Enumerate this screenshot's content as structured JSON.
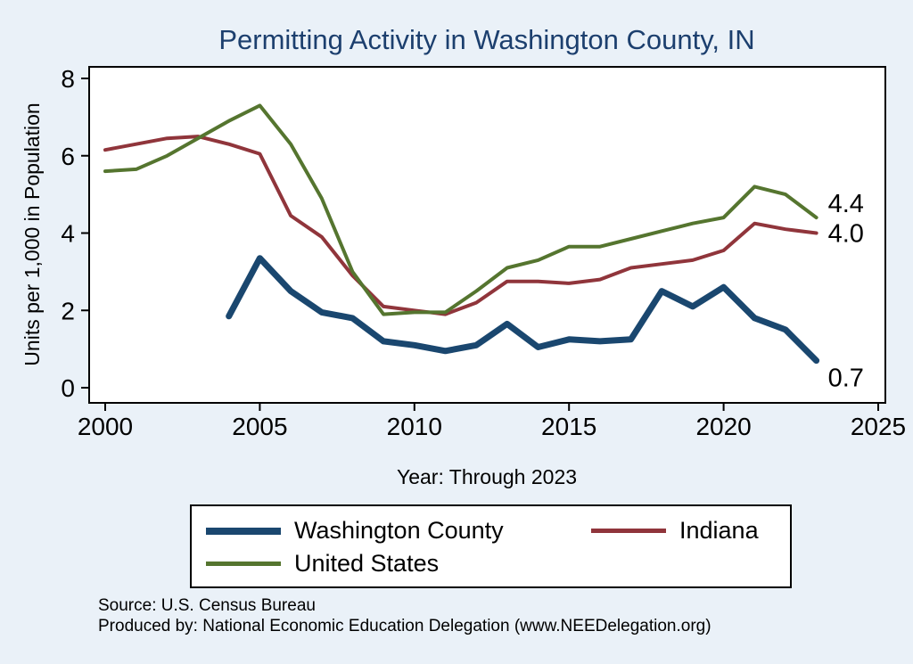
{
  "page": {
    "background_color": "#eaf1f8",
    "title_color": "#1c3f6e",
    "plot_border_color": "#000000"
  },
  "chart_data": {
    "type": "line",
    "title": "Permitting Activity in Washington County, IN",
    "xlabel": "Year: Through 2023",
    "ylabel": "Units per 1,000 in Population",
    "xlim": [
      2000,
      2025
    ],
    "ylim": [
      0,
      8
    ],
    "xticks": [
      2000,
      2005,
      2010,
      2015,
      2020,
      2025
    ],
    "yticks": [
      0,
      2,
      4,
      6,
      8
    ],
    "grid": false,
    "legend_position": "bottom",
    "plot_background": "#ffffff",
    "series": [
      {
        "name": "Washington County",
        "color": "#1a476f",
        "line_width": 7,
        "legend_thickness": 8,
        "x": [
          2004,
          2005,
          2006,
          2007,
          2008,
          2009,
          2010,
          2011,
          2012,
          2013,
          2014,
          2015,
          2016,
          2017,
          2018,
          2019,
          2020,
          2021,
          2022,
          2023
        ],
        "values": [
          1.85,
          3.35,
          2.5,
          1.95,
          1.8,
          1.2,
          1.1,
          0.95,
          1.1,
          1.65,
          1.05,
          1.25,
          1.2,
          1.25,
          2.5,
          2.1,
          2.6,
          1.8,
          1.5,
          0.7
        ],
        "end_label": "0.7",
        "end_label_dy": 29
      },
      {
        "name": "Indiana",
        "color": "#90353b",
        "line_width": 4,
        "legend_thickness": 5,
        "x": [
          2000,
          2001,
          2002,
          2003,
          2004,
          2005,
          2006,
          2007,
          2008,
          2009,
          2010,
          2011,
          2012,
          2013,
          2014,
          2015,
          2016,
          2017,
          2018,
          2019,
          2020,
          2021,
          2022,
          2023
        ],
        "values": [
          6.15,
          6.3,
          6.45,
          6.5,
          6.3,
          6.05,
          4.45,
          3.9,
          2.9,
          2.1,
          2.0,
          1.9,
          2.2,
          2.75,
          2.75,
          2.7,
          2.8,
          3.1,
          3.2,
          3.3,
          3.55,
          4.25,
          4.1,
          4.0
        ],
        "end_label": "4.0",
        "end_label_dy": 10
      },
      {
        "name": "United States",
        "color": "#55752f",
        "line_width": 4,
        "legend_thickness": 5,
        "x": [
          2000,
          2001,
          2002,
          2003,
          2004,
          2005,
          2006,
          2007,
          2008,
          2009,
          2010,
          2011,
          2012,
          2013,
          2014,
          2015,
          2016,
          2017,
          2018,
          2019,
          2020,
          2021,
          2022,
          2023
        ],
        "values": [
          5.6,
          5.65,
          6.0,
          6.45,
          6.9,
          7.3,
          6.3,
          4.9,
          3.0,
          1.9,
          1.95,
          1.95,
          2.5,
          3.1,
          3.3,
          3.65,
          3.65,
          3.85,
          4.05,
          4.25,
          4.4,
          5.2,
          5.0,
          4.4
        ],
        "end_label": "4.4",
        "end_label_dy": -6
      }
    ]
  },
  "footer": {
    "source": "Source: U.S. Census Bureau",
    "produced_by": "Produced by: National Economic Education Delegation (www.NEEDelegation.org)"
  }
}
